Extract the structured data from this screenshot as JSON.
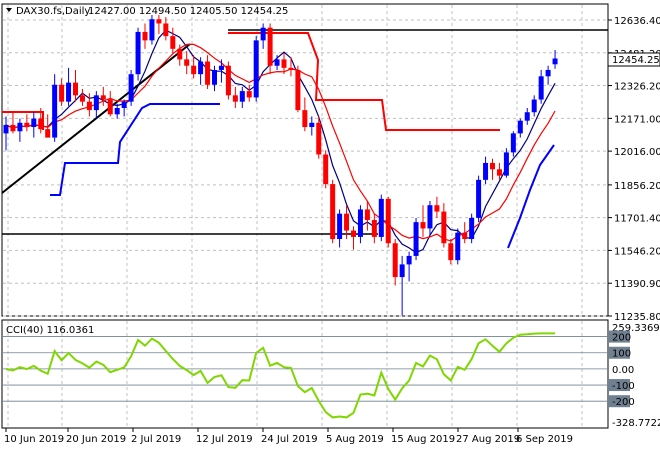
{
  "header": {
    "symbol": "DAX30.fs,Daily",
    "ohlc": "12427.00 12494.50 12405.50 12454.25"
  },
  "price_axis": {
    "ticks": [
      "12636.40",
      "12481.20",
      "12326.20",
      "12171.00",
      "12016.00",
      "11856.20",
      "11701.40",
      "11546.20",
      "11390.90",
      "11235.80"
    ],
    "current_price": "12454.25"
  },
  "cci_panel": {
    "label": "CCI(40) 116.0361",
    "ticks": [
      "259.3369",
      "200",
      "100",
      "0.00",
      "-100",
      "-200",
      "-328.7722"
    ]
  },
  "time_axis": {
    "labels": [
      "10 Jun 2019",
      "20 Jun 2019",
      "2 Jul 2019",
      "12 Jul 2019",
      "24 Jul 2019",
      "5 Aug 2019",
      "15 Aug 2019",
      "27 Aug 2019",
      "6 Sep 2019"
    ]
  },
  "colors": {
    "bull": "#0000ff",
    "bear": "#ff0000",
    "cci": "#7fd700",
    "fast_ma": "#000080",
    "slow_ma": "#ff0000",
    "stop": "#0000ff",
    "trend": "#000000",
    "level": "#ff0000"
  },
  "chart_data": {
    "type": "candlestick",
    "ylim": [
      11235.8,
      12700
    ],
    "candles": [
      {
        "o": 12100,
        "h": 12180,
        "l": 12020,
        "c": 12140
      },
      {
        "o": 12140,
        "h": 12200,
        "l": 12100,
        "c": 12110
      },
      {
        "o": 12110,
        "h": 12170,
        "l": 12060,
        "c": 12150
      },
      {
        "o": 12150,
        "h": 12190,
        "l": 12110,
        "c": 12130
      },
      {
        "o": 12130,
        "h": 12200,
        "l": 12080,
        "c": 12170
      },
      {
        "o": 12170,
        "h": 12220,
        "l": 12100,
        "c": 12120
      },
      {
        "o": 12120,
        "h": 12190,
        "l": 12080,
        "c": 12080
      },
      {
        "o": 12080,
        "h": 12380,
        "l": 12060,
        "c": 12330
      },
      {
        "o": 12330,
        "h": 12360,
        "l": 12230,
        "c": 12250
      },
      {
        "o": 12250,
        "h": 12410,
        "l": 12230,
        "c": 12340
      },
      {
        "o": 12340,
        "h": 12400,
        "l": 12250,
        "c": 12280
      },
      {
        "o": 12280,
        "h": 12310,
        "l": 12230,
        "c": 12250
      },
      {
        "o": 12250,
        "h": 12290,
        "l": 12180,
        "c": 12210
      },
      {
        "o": 12210,
        "h": 12300,
        "l": 12170,
        "c": 12280
      },
      {
        "o": 12280,
        "h": 12320,
        "l": 12230,
        "c": 12260
      },
      {
        "o": 12260,
        "h": 12300,
        "l": 12180,
        "c": 12190
      },
      {
        "o": 12190,
        "h": 12240,
        "l": 12170,
        "c": 12220
      },
      {
        "o": 12220,
        "h": 12260,
        "l": 12180,
        "c": 12250
      },
      {
        "o": 12250,
        "h": 12400,
        "l": 12230,
        "c": 12380
      },
      {
        "o": 12380,
        "h": 12600,
        "l": 12350,
        "c": 12580
      },
      {
        "o": 12580,
        "h": 12620,
        "l": 12500,
        "c": 12540
      },
      {
        "o": 12540,
        "h": 12660,
        "l": 12520,
        "c": 12640
      },
      {
        "o": 12640,
        "h": 12660,
        "l": 12570,
        "c": 12620
      },
      {
        "o": 12620,
        "h": 12650,
        "l": 12540,
        "c": 12560
      },
      {
        "o": 12560,
        "h": 12600,
        "l": 12480,
        "c": 12500
      },
      {
        "o": 12500,
        "h": 12520,
        "l": 12420,
        "c": 12450
      },
      {
        "o": 12450,
        "h": 12490,
        "l": 12380,
        "c": 12420
      },
      {
        "o": 12420,
        "h": 12470,
        "l": 12360,
        "c": 12380
      },
      {
        "o": 12380,
        "h": 12460,
        "l": 12330,
        "c": 12440
      },
      {
        "o": 12440,
        "h": 12470,
        "l": 12310,
        "c": 12330
      },
      {
        "o": 12330,
        "h": 12420,
        "l": 12300,
        "c": 12400
      },
      {
        "o": 12400,
        "h": 12450,
        "l": 12340,
        "c": 12420
      },
      {
        "o": 12420,
        "h": 12440,
        "l": 12260,
        "c": 12280
      },
      {
        "o": 12280,
        "h": 12320,
        "l": 12220,
        "c": 12250
      },
      {
        "o": 12250,
        "h": 12320,
        "l": 12220,
        "c": 12300
      },
      {
        "o": 12300,
        "h": 12330,
        "l": 12250,
        "c": 12270
      },
      {
        "o": 12270,
        "h": 12560,
        "l": 12250,
        "c": 12540
      },
      {
        "o": 12540,
        "h": 12620,
        "l": 12500,
        "c": 12600
      },
      {
        "o": 12600,
        "h": 12620,
        "l": 12380,
        "c": 12420
      },
      {
        "o": 12420,
        "h": 12470,
        "l": 12400,
        "c": 12450
      },
      {
        "o": 12450,
        "h": 12480,
        "l": 12380,
        "c": 12410
      },
      {
        "o": 12410,
        "h": 12460,
        "l": 12370,
        "c": 12400
      },
      {
        "o": 12400,
        "h": 12420,
        "l": 12200,
        "c": 12210
      },
      {
        "o": 12210,
        "h": 12270,
        "l": 12110,
        "c": 12130
      },
      {
        "o": 12130,
        "h": 12180,
        "l": 12090,
        "c": 12150
      },
      {
        "o": 12150,
        "h": 12180,
        "l": 11980,
        "c": 12000
      },
      {
        "o": 12000,
        "h": 12020,
        "l": 11840,
        "c": 11860
      },
      {
        "o": 11860,
        "h": 11880,
        "l": 11580,
        "c": 11600
      },
      {
        "o": 11600,
        "h": 11740,
        "l": 11560,
        "c": 11720
      },
      {
        "o": 11720,
        "h": 11760,
        "l": 11600,
        "c": 11640
      },
      {
        "o": 11640,
        "h": 11660,
        "l": 11550,
        "c": 11610
      },
      {
        "o": 11610,
        "h": 11760,
        "l": 11580,
        "c": 11740
      },
      {
        "o": 11740,
        "h": 11780,
        "l": 11640,
        "c": 11690
      },
      {
        "o": 11690,
        "h": 11720,
        "l": 11580,
        "c": 11610
      },
      {
        "o": 11610,
        "h": 11810,
        "l": 11590,
        "c": 11790
      },
      {
        "o": 11790,
        "h": 11800,
        "l": 11560,
        "c": 11580
      },
      {
        "o": 11580,
        "h": 11600,
        "l": 11380,
        "c": 11420
      },
      {
        "o": 11420,
        "h": 11520,
        "l": 11240,
        "c": 11480
      },
      {
        "o": 11480,
        "h": 11540,
        "l": 11400,
        "c": 11520
      },
      {
        "o": 11520,
        "h": 11700,
        "l": 11500,
        "c": 11680
      },
      {
        "o": 11680,
        "h": 11760,
        "l": 11610,
        "c": 11650
      },
      {
        "o": 11650,
        "h": 11780,
        "l": 11620,
        "c": 11760
      },
      {
        "o": 11760,
        "h": 11800,
        "l": 11700,
        "c": 11730
      },
      {
        "o": 11730,
        "h": 11770,
        "l": 11560,
        "c": 11580
      },
      {
        "o": 11580,
        "h": 11600,
        "l": 11480,
        "c": 11500
      },
      {
        "o": 11500,
        "h": 11650,
        "l": 11480,
        "c": 11630
      },
      {
        "o": 11630,
        "h": 11680,
        "l": 11580,
        "c": 11600
      },
      {
        "o": 11600,
        "h": 11720,
        "l": 11580,
        "c": 11700
      },
      {
        "o": 11700,
        "h": 11900,
        "l": 11680,
        "c": 11880
      },
      {
        "o": 11880,
        "h": 11990,
        "l": 11860,
        "c": 11960
      },
      {
        "o": 11960,
        "h": 11980,
        "l": 11880,
        "c": 11930
      },
      {
        "o": 11930,
        "h": 11960,
        "l": 11880,
        "c": 11900
      },
      {
        "o": 11900,
        "h": 12030,
        "l": 11890,
        "c": 12010
      },
      {
        "o": 12010,
        "h": 12110,
        "l": 11990,
        "c": 12100
      },
      {
        "o": 12100,
        "h": 12170,
        "l": 12080,
        "c": 12160
      },
      {
        "o": 12160,
        "h": 12220,
        "l": 12140,
        "c": 12200
      },
      {
        "o": 12200,
        "h": 12280,
        "l": 12180,
        "c": 12260
      },
      {
        "o": 12260,
        "h": 12400,
        "l": 12240,
        "c": 12370
      },
      {
        "o": 12370,
        "h": 12420,
        "l": 12330,
        "c": 12400
      },
      {
        "o": 12427,
        "h": 12494.5,
        "l": 12405.5,
        "c": 12454.25
      }
    ]
  }
}
